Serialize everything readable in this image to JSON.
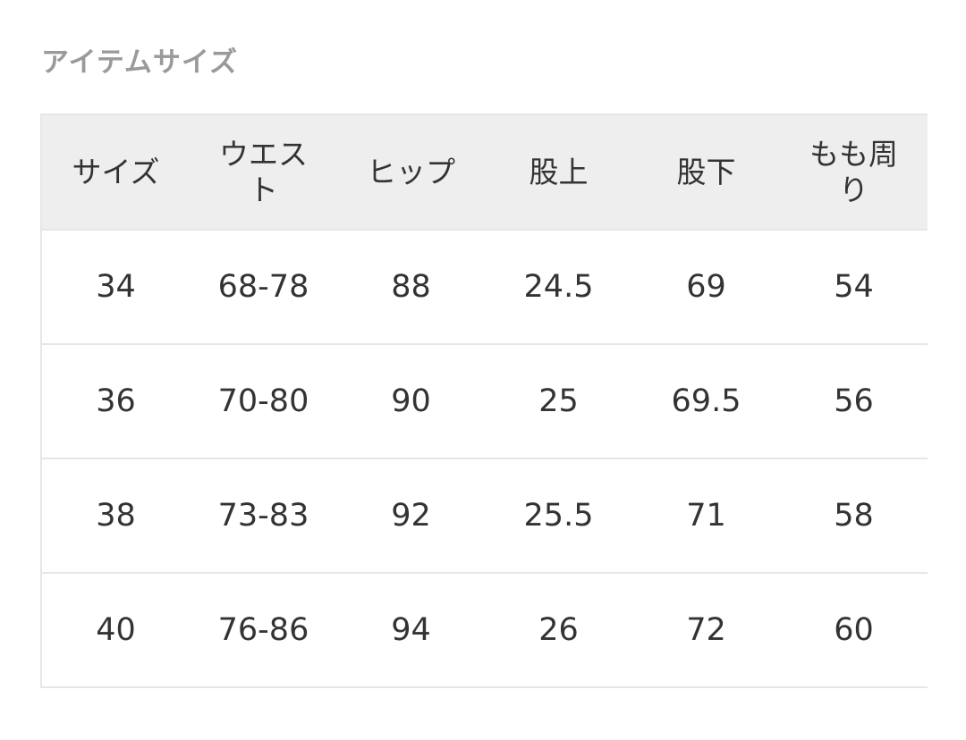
{
  "title": "アイテムサイズ",
  "table": {
    "headers": [
      "サイズ",
      "ウエスト",
      "ヒップ",
      "股上",
      "股下",
      "もも周り"
    ],
    "rows": [
      [
        "34",
        "68-78",
        "88",
        "24.5",
        "69",
        "54"
      ],
      [
        "36",
        "70-80",
        "90",
        "25",
        "69.5",
        "56"
      ],
      [
        "38",
        "73-83",
        "92",
        "25.5",
        "71",
        "58"
      ],
      [
        "40",
        "76-86",
        "94",
        "26",
        "72",
        "60"
      ]
    ]
  }
}
